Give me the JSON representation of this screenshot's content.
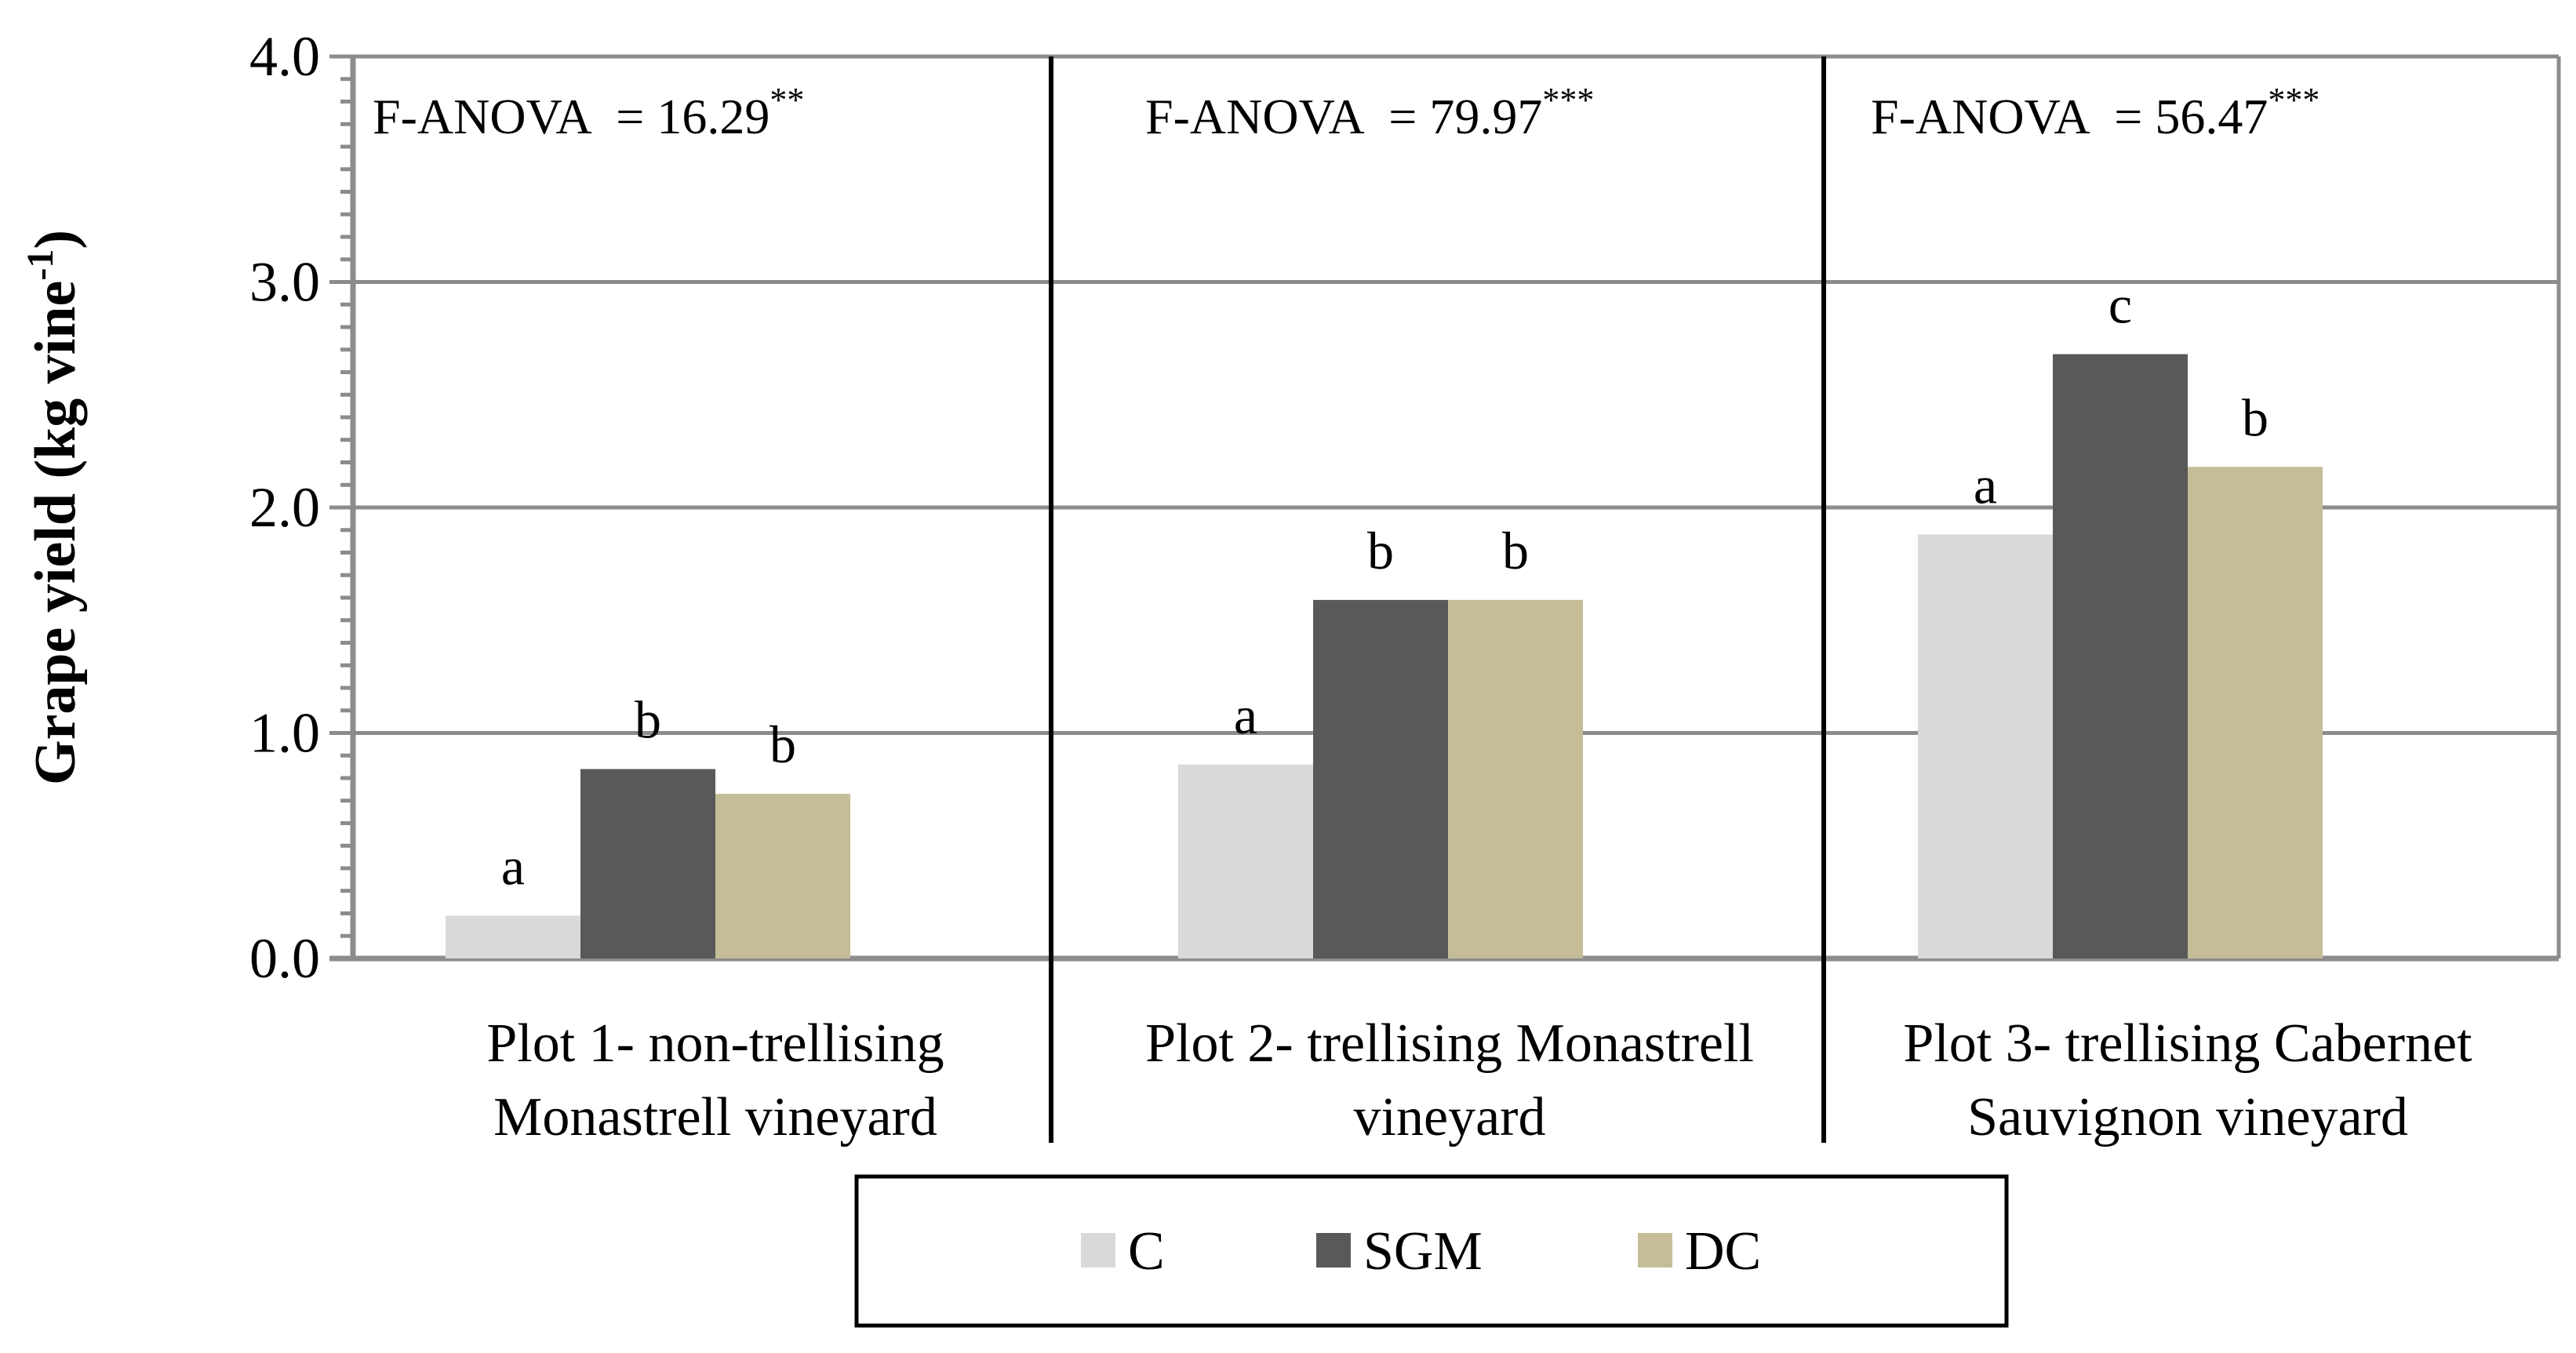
{
  "chart_data": {
    "type": "bar",
    "title": "",
    "xlabel": "",
    "ylabel": "Grape yield  (kg vine",
    "ylabel_superscript": "-1",
    "ylabel_close": ")",
    "ylim": [
      0,
      4
    ],
    "yticks": [
      0,
      1,
      2,
      3,
      4
    ],
    "ytick_labels": [
      "0.0",
      "1.0",
      "2.0",
      "3.0",
      "4.0"
    ],
    "grid": true,
    "legend_position": "bottom",
    "categories": [
      {
        "line1": "Plot 1- non-trellising",
        "line2": "Monastrell vineyard"
      },
      {
        "line1": "Plot 2- trellising Monastrell",
        "line2": "vineyard"
      },
      {
        "line1": "Plot 3- trellising Cabernet",
        "line2": "Sauvignon vineyard"
      }
    ],
    "series": [
      {
        "name": "C",
        "color": "#d9d9d9",
        "values": [
          0.19,
          0.86,
          1.88
        ]
      },
      {
        "name": "SGM",
        "color": "#595959",
        "values": [
          0.84,
          1.59,
          2.68
        ]
      },
      {
        "name": "DC",
        "color": "#c4bd97",
        "values": [
          0.73,
          1.59,
          2.18
        ]
      }
    ],
    "significance_letters": [
      [
        "a",
        "b",
        "b"
      ],
      [
        "a",
        "b",
        "b"
      ],
      [
        "a",
        "c",
        "b"
      ]
    ],
    "annotations": [
      {
        "label": "F-ANOVA",
        "eq": " = 16.29",
        "sup": "**"
      },
      {
        "label": "F-ANOVA",
        "eq": " = 79.97",
        "sup": "***"
      },
      {
        "label": "F-ANOVA",
        "eq": " = 56.47",
        "sup": "***"
      }
    ],
    "colors": {
      "grid": "#8c8c8c",
      "axis": "#8c8c8c",
      "separator": "#000000",
      "frame": "#000000"
    }
  }
}
